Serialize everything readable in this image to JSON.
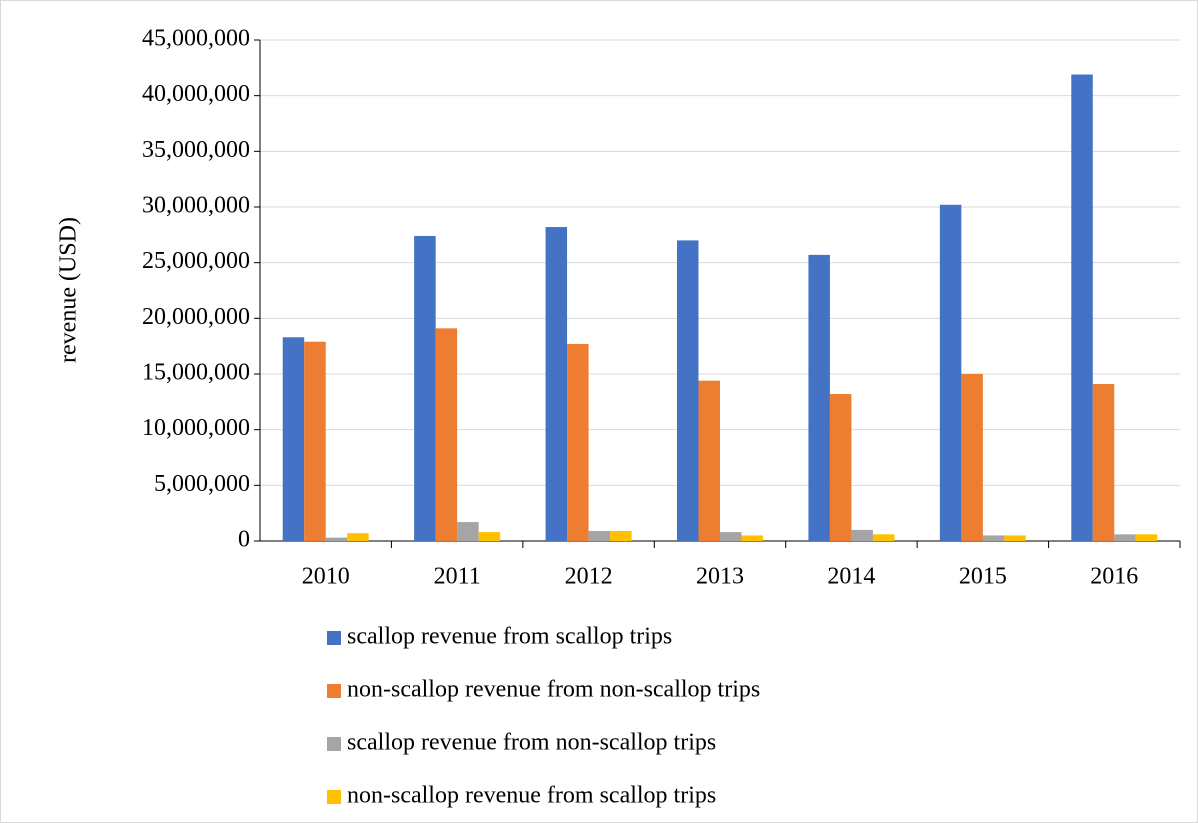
{
  "chart_data": {
    "type": "bar",
    "y_label": "revenue (USD)",
    "categories": [
      "2010",
      "2011",
      "2012",
      "2013",
      "2014",
      "2015",
      "2016"
    ],
    "series": [
      {
        "name": "scallop revenue from scallop trips",
        "color": "#4472c4",
        "values": [
          18300000,
          27400000,
          28200000,
          27000000,
          25700000,
          30200000,
          41900000
        ]
      },
      {
        "name": "non-scallop revenue from non-scallop trips",
        "color": "#ed7d31",
        "values": [
          17900000,
          19100000,
          17700000,
          14400000,
          13200000,
          15000000,
          14100000
        ]
      },
      {
        "name": "scallop revenue from non-scallop trips",
        "color": "#a5a5a5",
        "values": [
          300000,
          1700000,
          900000,
          800000,
          1000000,
          500000,
          600000
        ]
      },
      {
        "name": "non-scallop revenue from scallop trips",
        "color": "#ffc000",
        "values": [
          700000,
          800000,
          900000,
          500000,
          600000,
          500000,
          600000
        ]
      }
    ],
    "ylim": [
      0,
      45000000
    ],
    "yticks": [
      0,
      {
        "value": 5000000,
        "label": "5,000,000"
      },
      {
        "value": 10000000,
        "label": "10,000,000"
      },
      {
        "value": 15000000,
        "label": "15,000,000"
      },
      {
        "value": 20000000,
        "label": "20,000,000"
      },
      {
        "value": 25000000,
        "label": "25,000,000"
      },
      {
        "value": 30000000,
        "label": "30,000,000"
      },
      {
        "value": 35000000,
        "label": "35,000,000"
      },
      {
        "value": 40000000,
        "label": "40,000,000"
      },
      {
        "value": 45000000,
        "label": "45,000,000"
      }
    ],
    "grid": true,
    "legend": "bottom"
  }
}
